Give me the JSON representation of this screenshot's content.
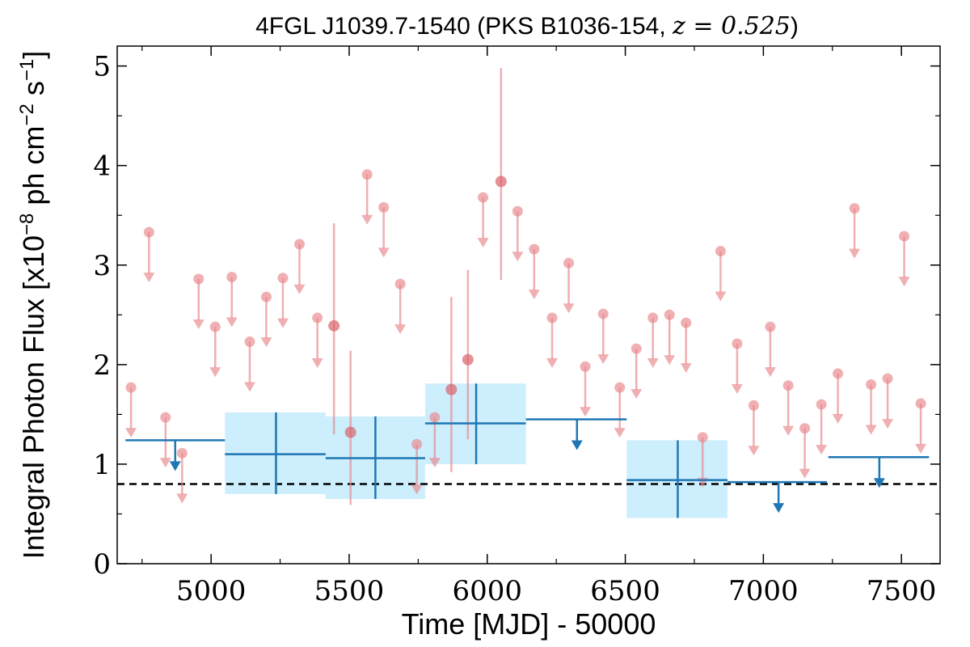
{
  "chart_data": {
    "type": "scatter",
    "title": "4FGL J1039.7-1540 (PKS B1036-154, ",
    "title_math": "z = 0.525",
    "title_close": ")",
    "xlabel": "Time [MJD] - 50000",
    "ylabel_parts": [
      "Integral Photon Flux [x10",
      "−8",
      " ph cm",
      "−2",
      " s",
      "−1",
      "]"
    ],
    "xlim": [
      4660,
      7640
    ],
    "ylim": [
      0,
      5.2
    ],
    "x_ticks": [
      5000,
      5500,
      6000,
      6500,
      7000,
      7500
    ],
    "x_tick_labels": [
      "5000",
      "5500",
      "6000",
      "6500",
      "7000",
      "7500"
    ],
    "y_ticks": [
      0,
      1,
      2,
      3,
      4,
      5
    ],
    "y_tick_labels": [
      "0",
      "1",
      "2",
      "3",
      "4",
      "5"
    ],
    "grid": false,
    "reference_line": {
      "y": 0.8,
      "style": "dashed",
      "color": "#000000"
    },
    "colors": {
      "short_bins": "#e8858a",
      "long_bins": "#1f77b4",
      "band": "#cdeefc"
    },
    "short_bin_upper_limits": [
      {
        "x": 4710,
        "y": 1.77
      },
      {
        "x": 4775,
        "y": 3.33
      },
      {
        "x": 4835,
        "y": 1.47
      },
      {
        "x": 4895,
        "y": 1.11
      },
      {
        "x": 4955,
        "y": 2.86
      },
      {
        "x": 5015,
        "y": 2.38
      },
      {
        "x": 5075,
        "y": 2.88
      },
      {
        "x": 5140,
        "y": 2.23
      },
      {
        "x": 5200,
        "y": 2.68
      },
      {
        "x": 5260,
        "y": 2.87
      },
      {
        "x": 5320,
        "y": 3.21
      },
      {
        "x": 5385,
        "y": 2.47
      },
      {
        "x": 5565,
        "y": 3.91
      },
      {
        "x": 5625,
        "y": 3.58
      },
      {
        "x": 5685,
        "y": 2.81
      },
      {
        "x": 5745,
        "y": 1.2
      },
      {
        "x": 5810,
        "y": 1.47
      },
      {
        "x": 5985,
        "y": 3.68
      },
      {
        "x": 6110,
        "y": 3.54
      },
      {
        "x": 6170,
        "y": 3.16
      },
      {
        "x": 6235,
        "y": 2.47
      },
      {
        "x": 6295,
        "y": 3.02
      },
      {
        "x": 6355,
        "y": 1.98
      },
      {
        "x": 6420,
        "y": 2.51
      },
      {
        "x": 6480,
        "y": 1.77
      },
      {
        "x": 6540,
        "y": 2.16
      },
      {
        "x": 6600,
        "y": 2.47
      },
      {
        "x": 6660,
        "y": 2.5
      },
      {
        "x": 6720,
        "y": 2.42
      },
      {
        "x": 6780,
        "y": 1.27
      },
      {
        "x": 6845,
        "y": 3.14
      },
      {
        "x": 6905,
        "y": 2.21
      },
      {
        "x": 6965,
        "y": 1.59
      },
      {
        "x": 7025,
        "y": 2.38
      },
      {
        "x": 7090,
        "y": 1.79
      },
      {
        "x": 7150,
        "y": 1.36
      },
      {
        "x": 7210,
        "y": 1.6
      },
      {
        "x": 7270,
        "y": 1.91
      },
      {
        "x": 7330,
        "y": 3.57
      },
      {
        "x": 7390,
        "y": 1.8
      },
      {
        "x": 7450,
        "y": 1.86
      },
      {
        "x": 7510,
        "y": 3.29
      },
      {
        "x": 7570,
        "y": 1.61
      }
    ],
    "short_bin_detections": [
      {
        "x": 5445,
        "y": 2.39,
        "y_low": 1.3,
        "y_high": 3.42
      },
      {
        "x": 5505,
        "y": 1.32,
        "y_low": 0.59,
        "y_high": 2.14
      },
      {
        "x": 5870,
        "y": 1.75,
        "y_low": 0.92,
        "y_high": 2.68
      },
      {
        "x": 5930,
        "y": 2.05,
        "y_low": 1.25,
        "y_high": 2.95
      },
      {
        "x": 6050,
        "y": 3.84,
        "y_low": 2.85,
        "y_high": 4.98
      }
    ],
    "long_bin_upper_limits": [
      {
        "x_low": 4690,
        "x_high": 5050,
        "x_mid": 4870,
        "y": 1.24
      },
      {
        "x_low": 6140,
        "x_high": 6505,
        "x_mid": 6325,
        "y": 1.45
      },
      {
        "x_low": 6870,
        "x_high": 7230,
        "x_mid": 7055,
        "y": 0.82
      },
      {
        "x_low": 7235,
        "x_high": 7600,
        "x_mid": 7420,
        "y": 1.07
      }
    ],
    "long_bin_detections": [
      {
        "x_low": 5050,
        "x_high": 5415,
        "x_mid": 5235,
        "y": 1.1,
        "y_low": 0.7,
        "y_high": 1.52
      },
      {
        "x_low": 5415,
        "x_high": 5775,
        "x_mid": 5595,
        "y": 1.06,
        "y_low": 0.65,
        "y_high": 1.48
      },
      {
        "x_low": 5775,
        "x_high": 6140,
        "x_mid": 5960,
        "y": 1.41,
        "y_low": 1.0,
        "y_high": 1.81
      },
      {
        "x_low": 6505,
        "x_high": 6870,
        "x_mid": 6690,
        "y": 0.84,
        "y_low": 0.46,
        "y_high": 1.24
      }
    ]
  }
}
